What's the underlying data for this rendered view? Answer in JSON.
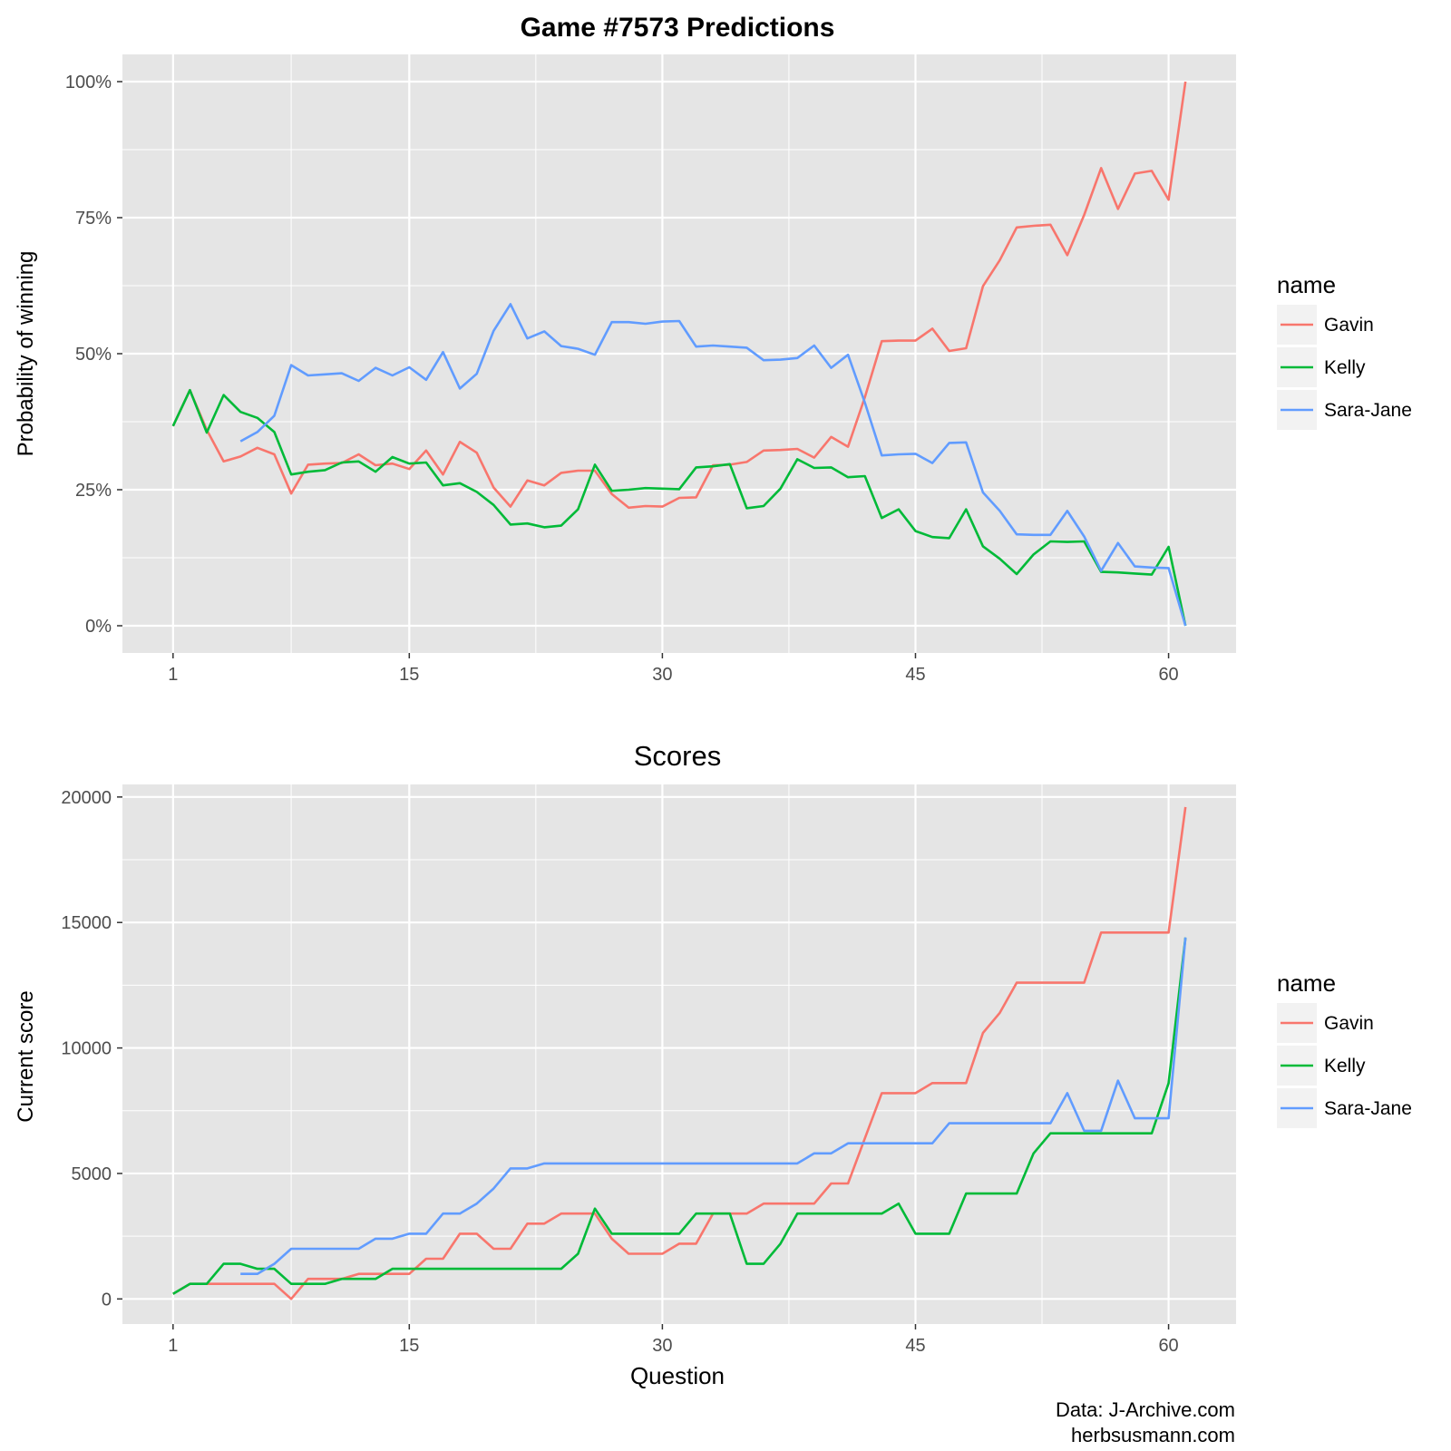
{
  "figure": {
    "caption_line1": "Data: J-Archive.com",
    "caption_line2": "herbsusmann.com"
  },
  "colors": {
    "panel_background": "#e5e5e5",
    "grid": "#ffffff",
    "axis_text": "#4d4d4d",
    "title_text": "#000000",
    "series": {
      "Gavin": "#f8766d",
      "Kelly": "#00ba38",
      "Sara-Jane": "#619cff"
    }
  },
  "chart_data": [
    {
      "type": "line",
      "title": "Game #7573 Predictions",
      "title_bold": true,
      "xlabel": "",
      "ylabel": "Probability of winning",
      "x_ticks": [
        1,
        15,
        30,
        45,
        60
      ],
      "x_tick_labels": [
        "1",
        "15",
        "30",
        "45",
        "60"
      ],
      "xlim": [
        -2,
        64
      ],
      "y_ticks": [
        0,
        0.25,
        0.5,
        0.75,
        1
      ],
      "y_tick_labels": [
        "0%",
        "25%",
        "50%",
        "75%",
        "100%"
      ],
      "ylim": [
        -0.05,
        1.05
      ],
      "grid": true,
      "legend": {
        "title": "name",
        "position": "right",
        "entries": [
          "Gavin",
          "Kelly",
          "Sara-Jane"
        ]
      },
      "series": [
        {
          "name": "Gavin",
          "x": [
            1,
            2,
            3,
            4,
            5,
            6,
            7,
            8,
            9,
            10,
            11,
            12,
            13,
            14,
            15,
            16,
            17,
            18,
            19,
            20,
            21,
            22,
            23,
            24,
            25,
            26,
            27,
            28,
            29,
            30,
            31,
            32,
            33,
            34,
            35,
            36,
            37,
            38,
            39,
            40,
            41,
            42,
            43,
            44,
            45,
            46,
            47,
            48,
            49,
            50,
            51,
            52,
            53,
            54,
            55,
            56,
            57,
            58,
            59,
            60,
            61
          ],
          "y": [
            0.367,
            0.433,
            0.36,
            0.302,
            0.311,
            0.327,
            0.315,
            0.243,
            0.296,
            0.298,
            0.299,
            0.315,
            0.295,
            0.298,
            0.288,
            0.322,
            0.278,
            0.338,
            0.318,
            0.254,
            0.219,
            0.267,
            0.258,
            0.281,
            0.285,
            0.285,
            0.242,
            0.217,
            0.22,
            0.219,
            0.235,
            0.236,
            0.295,
            0.296,
            0.301,
            0.322,
            0.323,
            0.325,
            0.309,
            0.347,
            0.329,
            0.42,
            0.523,
            0.524,
            0.524,
            0.546,
            0.505,
            0.51,
            0.624,
            0.672,
            0.732,
            0.735,
            0.737,
            0.681,
            0.755,
            0.841,
            0.766,
            0.831,
            0.836,
            0.783,
            1.0
          ]
        },
        {
          "name": "Kelly",
          "x": [
            1,
            2,
            3,
            4,
            5,
            6,
            7,
            8,
            9,
            10,
            11,
            12,
            13,
            14,
            15,
            16,
            17,
            18,
            19,
            20,
            21,
            22,
            23,
            24,
            25,
            26,
            27,
            28,
            29,
            30,
            31,
            32,
            33,
            34,
            35,
            36,
            37,
            38,
            39,
            40,
            41,
            42,
            43,
            44,
            45,
            46,
            47,
            48,
            49,
            50,
            51,
            52,
            53,
            54,
            55,
            56,
            57,
            58,
            59,
            60,
            61
          ],
          "y": [
            0.367,
            0.433,
            0.355,
            0.424,
            0.393,
            0.382,
            0.356,
            0.278,
            0.283,
            0.286,
            0.3,
            0.302,
            0.283,
            0.31,
            0.298,
            0.3,
            0.258,
            0.262,
            0.246,
            0.222,
            0.186,
            0.188,
            0.181,
            0.184,
            0.214,
            0.296,
            0.248,
            0.25,
            0.253,
            0.252,
            0.251,
            0.291,
            0.293,
            0.297,
            0.216,
            0.22,
            0.252,
            0.306,
            0.29,
            0.291,
            0.273,
            0.275,
            0.198,
            0.214,
            0.174,
            0.163,
            0.161,
            0.214,
            0.146,
            0.123,
            0.095,
            0.131,
            0.155,
            0.154,
            0.155,
            0.099,
            0.098,
            0.096,
            0.094,
            0.145,
            0.0
          ]
        },
        {
          "name": "Sara-Jane",
          "x": [
            5,
            6,
            7,
            8,
            9,
            10,
            11,
            12,
            13,
            14,
            15,
            16,
            17,
            18,
            19,
            20,
            21,
            22,
            23,
            24,
            25,
            26,
            27,
            28,
            29,
            30,
            31,
            32,
            33,
            34,
            35,
            36,
            37,
            38,
            39,
            40,
            41,
            42,
            43,
            44,
            45,
            46,
            47,
            48,
            49,
            50,
            51,
            52,
            53,
            54,
            55,
            56,
            57,
            58,
            59,
            60,
            61
          ],
          "y": [
            0.339,
            0.356,
            0.386,
            0.479,
            0.46,
            0.462,
            0.464,
            0.45,
            0.474,
            0.46,
            0.475,
            0.452,
            0.503,
            0.436,
            0.463,
            0.542,
            0.591,
            0.528,
            0.541,
            0.514,
            0.509,
            0.498,
            0.558,
            0.558,
            0.555,
            0.559,
            0.56,
            0.513,
            0.515,
            0.513,
            0.511,
            0.488,
            0.489,
            0.492,
            0.515,
            0.474,
            0.498,
            0.41,
            0.313,
            0.315,
            0.316,
            0.299,
            0.336,
            0.337,
            0.245,
            0.211,
            0.168,
            0.167,
            0.167,
            0.211,
            0.164,
            0.101,
            0.152,
            0.109,
            0.107,
            0.106,
            0.0
          ]
        }
      ]
    },
    {
      "type": "line",
      "title": "Scores",
      "title_bold": false,
      "xlabel": "Question",
      "ylabel": "Current score",
      "x_ticks": [
        1,
        15,
        30,
        45,
        60
      ],
      "x_tick_labels": [
        "1",
        "15",
        "30",
        "45",
        "60"
      ],
      "xlim": [
        -2,
        64
      ],
      "y_ticks": [
        0,
        5000,
        10000,
        15000,
        20000
      ],
      "y_tick_labels": [
        "0",
        "5000",
        "10000",
        "15000",
        "20000"
      ],
      "ylim": [
        -1000,
        20500
      ],
      "grid": true,
      "legend": {
        "title": "name",
        "position": "right",
        "entries": [
          "Gavin",
          "Kelly",
          "Sara-Jane"
        ]
      },
      "series": [
        {
          "name": "Gavin",
          "x": [
            1,
            2,
            3,
            4,
            5,
            6,
            7,
            8,
            9,
            10,
            11,
            12,
            13,
            14,
            15,
            16,
            17,
            18,
            19,
            20,
            21,
            22,
            23,
            24,
            25,
            26,
            27,
            28,
            29,
            30,
            31,
            32,
            33,
            34,
            35,
            36,
            37,
            38,
            39,
            40,
            41,
            42,
            43,
            44,
            45,
            46,
            47,
            48,
            49,
            50,
            51,
            52,
            53,
            54,
            55,
            56,
            57,
            58,
            59,
            60,
            61
          ],
          "y": [
            200,
            600,
            600,
            600,
            600,
            600,
            600,
            0,
            800,
            800,
            800,
            1000,
            1000,
            1000,
            1000,
            1600,
            1600,
            2600,
            2600,
            2000,
            2000,
            3000,
            3000,
            3400,
            3400,
            3400,
            2400,
            1800,
            1800,
            1800,
            2200,
            2200,
            3400,
            3400,
            3400,
            3800,
            3800,
            3800,
            3800,
            4600,
            4600,
            6400,
            8200,
            8200,
            8200,
            8600,
            8600,
            8600,
            10600,
            11400,
            12600,
            12600,
            12600,
            12600,
            12600,
            14600,
            14600,
            14600,
            14600,
            14600,
            19600
          ]
        },
        {
          "name": "Kelly",
          "x": [
            1,
            2,
            3,
            4,
            5,
            6,
            7,
            8,
            9,
            10,
            11,
            12,
            13,
            14,
            15,
            16,
            17,
            18,
            19,
            20,
            21,
            22,
            23,
            24,
            25,
            26,
            27,
            28,
            29,
            30,
            31,
            32,
            33,
            34,
            35,
            36,
            37,
            38,
            39,
            40,
            41,
            42,
            43,
            44,
            45,
            46,
            47,
            48,
            49,
            50,
            51,
            52,
            53,
            54,
            55,
            56,
            57,
            58,
            59,
            60,
            61
          ],
          "y": [
            200,
            600,
            600,
            1400,
            1400,
            1200,
            1200,
            600,
            600,
            600,
            800,
            800,
            800,
            1200,
            1200,
            1200,
            1200,
            1200,
            1200,
            1200,
            1200,
            1200,
            1200,
            1200,
            1800,
            3600,
            2600,
            2600,
            2600,
            2600,
            2600,
            3400,
            3400,
            3400,
            1400,
            1400,
            2200,
            3400,
            3400,
            3400,
            3400,
            3400,
            3400,
            3800,
            2600,
            2600,
            2600,
            4200,
            4200,
            4200,
            4200,
            5800,
            6600,
            6600,
            6600,
            6600,
            6600,
            6600,
            6600,
            8600,
            14400
          ]
        },
        {
          "name": "Sara-Jane",
          "x": [
            5,
            6,
            7,
            8,
            9,
            10,
            11,
            12,
            13,
            14,
            15,
            16,
            17,
            18,
            19,
            20,
            21,
            22,
            23,
            24,
            25,
            26,
            27,
            28,
            29,
            30,
            31,
            32,
            33,
            34,
            35,
            36,
            37,
            38,
            39,
            40,
            41,
            42,
            43,
            44,
            45,
            46,
            47,
            48,
            49,
            50,
            51,
            52,
            53,
            54,
            55,
            56,
            57,
            58,
            59,
            60,
            61
          ],
          "y": [
            1000,
            1000,
            1400,
            2000,
            2000,
            2000,
            2000,
            2000,
            2400,
            2400,
            2600,
            2600,
            3400,
            3400,
            3800,
            4400,
            5200,
            5200,
            5400,
            5400,
            5400,
            5400,
            5400,
            5400,
            5400,
            5400,
            5400,
            5400,
            5400,
            5400,
            5400,
            5400,
            5400,
            5400,
            5800,
            5800,
            6200,
            6200,
            6200,
            6200,
            6200,
            6200,
            7000,
            7000,
            7000,
            7000,
            7000,
            7000,
            7000,
            8200,
            6700,
            6700,
            8700,
            7200,
            7200,
            7200,
            14400
          ]
        }
      ]
    }
  ]
}
